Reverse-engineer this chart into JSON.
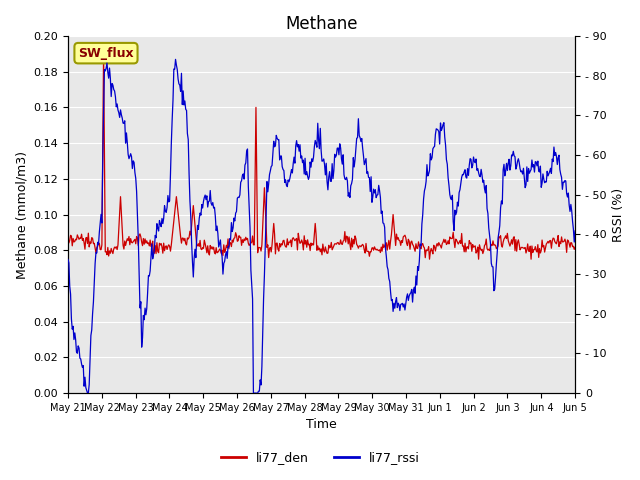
{
  "title": "Methane",
  "ylabel_left": "Methane (mmol/m3)",
  "ylabel_right": "RSSI (%)",
  "xlabel": "Time",
  "ylim_left": [
    0.0,
    0.2
  ],
  "ylim_right": [
    0,
    90
  ],
  "yticks_left": [
    0.0,
    0.02,
    0.04,
    0.06,
    0.08,
    0.1,
    0.12,
    0.14,
    0.16,
    0.18,
    0.2
  ],
  "yticks_right": [
    0,
    10,
    20,
    30,
    40,
    50,
    60,
    70,
    80,
    90
  ],
  "line1_label": "li77_den",
  "line1_color": "#cc0000",
  "line2_label": "li77_rssi",
  "line2_color": "#0000cc",
  "bg_color": "#e8e8e8",
  "box_label": "SW_flux",
  "box_facecolor": "#ffff99",
  "box_edgecolor": "#999900",
  "title_fontsize": 12,
  "tick_dates": [
    "May 21",
    "May 22",
    "May 23",
    "May 24",
    "May 25",
    "May 26",
    "May 27",
    "May 28",
    "May 29",
    "May 30",
    "May 31",
    "Jun 1",
    "Jun 2",
    "Jun 3",
    "Jun 4",
    "Jun 5"
  ],
  "n_points": 600
}
